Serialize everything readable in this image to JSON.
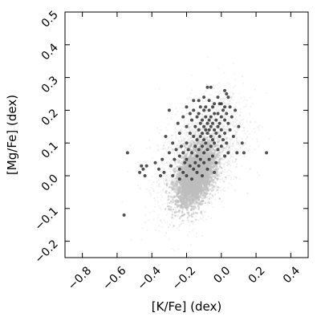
{
  "chart_data": {
    "type": "scatter",
    "title": "",
    "xlabel": "[K/Fe] (dex)",
    "ylabel": "[Mg/Fe] (dex)",
    "xlim": [
      -0.9,
      0.5
    ],
    "ylim": [
      -0.25,
      0.5
    ],
    "xticks": [
      -0.8,
      -0.6,
      -0.4,
      -0.2,
      0.0,
      0.2,
      0.4
    ],
    "xtick_labels": [
      "−0.8",
      "−0.6",
      "−0.4",
      "−0.2",
      "0.0",
      "0.2",
      "0.4"
    ],
    "yticks": [
      -0.2,
      -0.1,
      0.0,
      0.1,
      0.2,
      0.3,
      0.4,
      0.5
    ],
    "ytick_labels": [
      "−0.2",
      "−0.1",
      "0.0",
      "0.1",
      "0.2",
      "0.3",
      "0.4",
      "0.5"
    ],
    "grid": false,
    "legend": "none",
    "background_cloud": {
      "color": "#bdbdbd",
      "core_center": [
        -0.15,
        0.0
      ],
      "core_spread": [
        0.055,
        0.045
      ],
      "halo_center": [
        -0.12,
        0.06
      ],
      "halo_spread": [
        0.12,
        0.09
      ],
      "correlation": 0.45
    },
    "series": [
      {
        "color": "#333333",
        "points": [
          [
            -0.08,
            0.27
          ],
          [
            -0.06,
            0.27
          ],
          [
            0.02,
            0.26
          ],
          [
            0.03,
            0.25
          ],
          [
            -0.1,
            0.24
          ],
          [
            -0.02,
            0.24
          ],
          [
            0.04,
            0.24
          ],
          [
            -0.16,
            0.23
          ],
          [
            -0.13,
            0.23
          ],
          [
            -0.07,
            0.23
          ],
          [
            -0.04,
            0.22
          ],
          [
            -0.01,
            0.22
          ],
          [
            0.0,
            0.22
          ],
          [
            -0.2,
            0.21
          ],
          [
            -0.12,
            0.21
          ],
          [
            -0.09,
            0.21
          ],
          [
            -0.05,
            0.21
          ],
          [
            0.02,
            0.21
          ],
          [
            0.05,
            0.21
          ],
          [
            -0.3,
            0.2
          ],
          [
            -0.16,
            0.2
          ],
          [
            -0.1,
            0.2
          ],
          [
            -0.07,
            0.2
          ],
          [
            0.01,
            0.2
          ],
          [
            0.08,
            0.2
          ],
          [
            -0.18,
            0.19
          ],
          [
            -0.13,
            0.19
          ],
          [
            -0.04,
            0.19
          ],
          [
            -0.02,
            0.19
          ],
          [
            0.03,
            0.19
          ],
          [
            -0.22,
            0.18
          ],
          [
            -0.14,
            0.18
          ],
          [
            -0.09,
            0.18
          ],
          [
            -0.06,
            0.18
          ],
          [
            0.0,
            0.18
          ],
          [
            0.06,
            0.18
          ],
          [
            -0.17,
            0.17
          ],
          [
            -0.11,
            0.17
          ],
          [
            -0.07,
            0.17
          ],
          [
            -0.03,
            0.17
          ],
          [
            0.02,
            0.17
          ],
          [
            -0.25,
            0.16
          ],
          [
            -0.12,
            0.16
          ],
          [
            -0.08,
            0.16
          ],
          [
            -0.05,
            0.16
          ],
          [
            -0.01,
            0.16
          ],
          [
            0.04,
            0.16
          ],
          [
            -0.2,
            0.15
          ],
          [
            -0.15,
            0.15
          ],
          [
            -0.1,
            0.15
          ],
          [
            -0.06,
            0.15
          ],
          [
            -0.02,
            0.15
          ],
          [
            0.1,
            0.15
          ],
          [
            -0.13,
            0.14
          ],
          [
            -0.09,
            0.14
          ],
          [
            -0.07,
            0.14
          ],
          [
            -0.04,
            0.14
          ],
          [
            0.0,
            0.14
          ],
          [
            0.05,
            0.14
          ],
          [
            -0.24,
            0.13
          ],
          [
            -0.18,
            0.13
          ],
          [
            -0.11,
            0.13
          ],
          [
            -0.08,
            0.13
          ],
          [
            -0.03,
            0.13
          ],
          [
            0.02,
            0.13
          ],
          [
            -0.32,
            0.12
          ],
          [
            -0.16,
            0.12
          ],
          [
            -0.12,
            0.12
          ],
          [
            -0.06,
            0.12
          ],
          [
            -0.01,
            0.12
          ],
          [
            0.07,
            0.12
          ],
          [
            -0.14,
            0.11
          ],
          [
            -0.1,
            0.11
          ],
          [
            -0.05,
            0.11
          ],
          [
            0.01,
            0.11
          ],
          [
            -0.28,
            0.1
          ],
          [
            -0.2,
            0.1
          ],
          [
            -0.09,
            0.1
          ],
          [
            -0.04,
            0.1
          ],
          [
            0.03,
            0.1
          ],
          [
            0.12,
            0.1
          ],
          [
            -0.23,
            0.09
          ],
          [
            -0.15,
            0.09
          ],
          [
            -0.11,
            0.09
          ],
          [
            -0.06,
            0.09
          ],
          [
            0.0,
            0.09
          ],
          [
            -0.26,
            0.08
          ],
          [
            -0.19,
            0.08
          ],
          [
            -0.13,
            0.08
          ],
          [
            -0.08,
            0.08
          ],
          [
            -0.02,
            0.08
          ],
          [
            -0.3,
            0.07
          ],
          [
            -0.22,
            0.07
          ],
          [
            -0.17,
            0.07
          ],
          [
            -0.1,
            0.07
          ],
          [
            0.04,
            0.07
          ],
          [
            0.09,
            0.07
          ],
          [
            0.13,
            0.07
          ],
          [
            0.26,
            0.07
          ],
          [
            -0.54,
            0.07
          ],
          [
            -0.24,
            0.06
          ],
          [
            -0.14,
            0.06
          ],
          [
            -0.05,
            0.06
          ],
          [
            0.02,
            0.06
          ],
          [
            -0.34,
            0.05
          ],
          [
            -0.27,
            0.05
          ],
          [
            -0.2,
            0.05
          ],
          [
            -0.12,
            0.05
          ],
          [
            -0.07,
            0.05
          ],
          [
            -0.38,
            0.04
          ],
          [
            -0.21,
            0.04
          ],
          [
            -0.15,
            0.04
          ],
          [
            -0.1,
            0.04
          ],
          [
            -0.03,
            0.04
          ],
          [
            -0.29,
            0.03
          ],
          [
            -0.18,
            0.03
          ],
          [
            -0.13,
            0.03
          ],
          [
            -0.46,
            0.03
          ],
          [
            -0.43,
            0.03
          ],
          [
            -0.24,
            0.02
          ],
          [
            -0.16,
            0.02
          ],
          [
            -0.08,
            0.02
          ],
          [
            -0.36,
            0.02
          ],
          [
            -0.45,
            0.02
          ],
          [
            -0.22,
            0.01
          ],
          [
            -0.14,
            0.01
          ],
          [
            -0.33,
            0.01
          ],
          [
            -0.04,
            0.01
          ],
          [
            -0.47,
            0.01
          ],
          [
            -0.2,
            0.0
          ],
          [
            -0.11,
            0.0
          ],
          [
            -0.28,
            0.0
          ],
          [
            -0.35,
            0.0
          ],
          [
            -0.44,
            0.0
          ],
          [
            -0.17,
            -0.01
          ],
          [
            -0.24,
            -0.01
          ],
          [
            -0.56,
            -0.12
          ]
        ]
      }
    ]
  }
}
